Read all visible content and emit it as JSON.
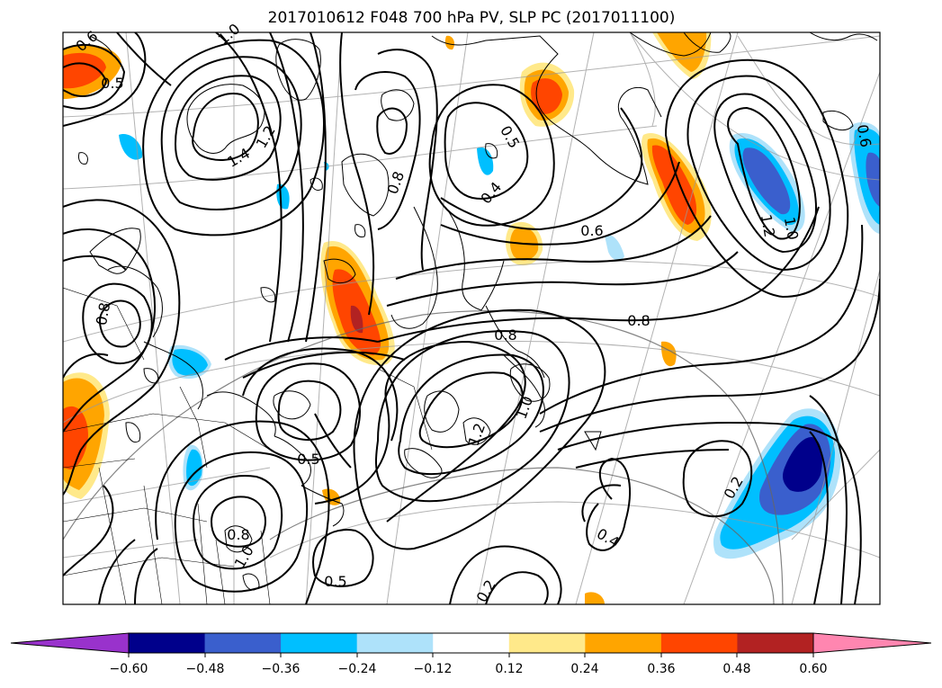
{
  "title": "2017010612 F048 700 hPa PV, SLP PC (2017011100)",
  "contour_labels": [
    {
      "text": "0.6",
      "rot": -40
    },
    {
      "text": "0.5",
      "rot": 0
    },
    {
      "text": "1.0",
      "rot": -40
    },
    {
      "text": "1.2",
      "rot": -60
    },
    {
      "text": "1.4",
      "rot": -30
    },
    {
      "text": "0.8",
      "rot": -70
    },
    {
      "text": "0.5",
      "rot": 60
    },
    {
      "text": "0.4",
      "rot": -50
    },
    {
      "text": "0.6",
      "rot": 0
    },
    {
      "text": "1.2",
      "rot": 80
    },
    {
      "text": "1.0",
      "rot": 80
    },
    {
      "text": "0.6",
      "rot": 80
    },
    {
      "text": "0.8",
      "rot": 0
    },
    {
      "text": "0.8",
      "rot": 0
    },
    {
      "text": "0.8",
      "rot": -80
    },
    {
      "text": "1.0",
      "rot": -70
    },
    {
      "text": "1.2",
      "rot": -70
    },
    {
      "text": "0.5",
      "rot": 0
    },
    {
      "text": "0.8",
      "rot": 0
    },
    {
      "text": "1.0",
      "rot": -60
    },
    {
      "text": "0.5",
      "rot": 0
    },
    {
      "text": "0.2",
      "rot": -60
    },
    {
      "text": "0.4",
      "rot": 30
    },
    {
      "text": "0.2",
      "rot": -60
    }
  ],
  "colorbar": {
    "ticks": [
      "−0.60",
      "−0.48",
      "−0.36",
      "−0.24",
      "−0.12",
      "0.12",
      "0.24",
      "0.36",
      "0.48",
      "0.60"
    ],
    "colors": [
      "#9932cc",
      "#00008b",
      "#3a5fcd",
      "#00bfff",
      "#aee2fa",
      "#ffffff",
      "#ffe98a",
      "#ffa500",
      "#ff4500",
      "#b22222",
      "#ff86b0"
    ]
  }
}
